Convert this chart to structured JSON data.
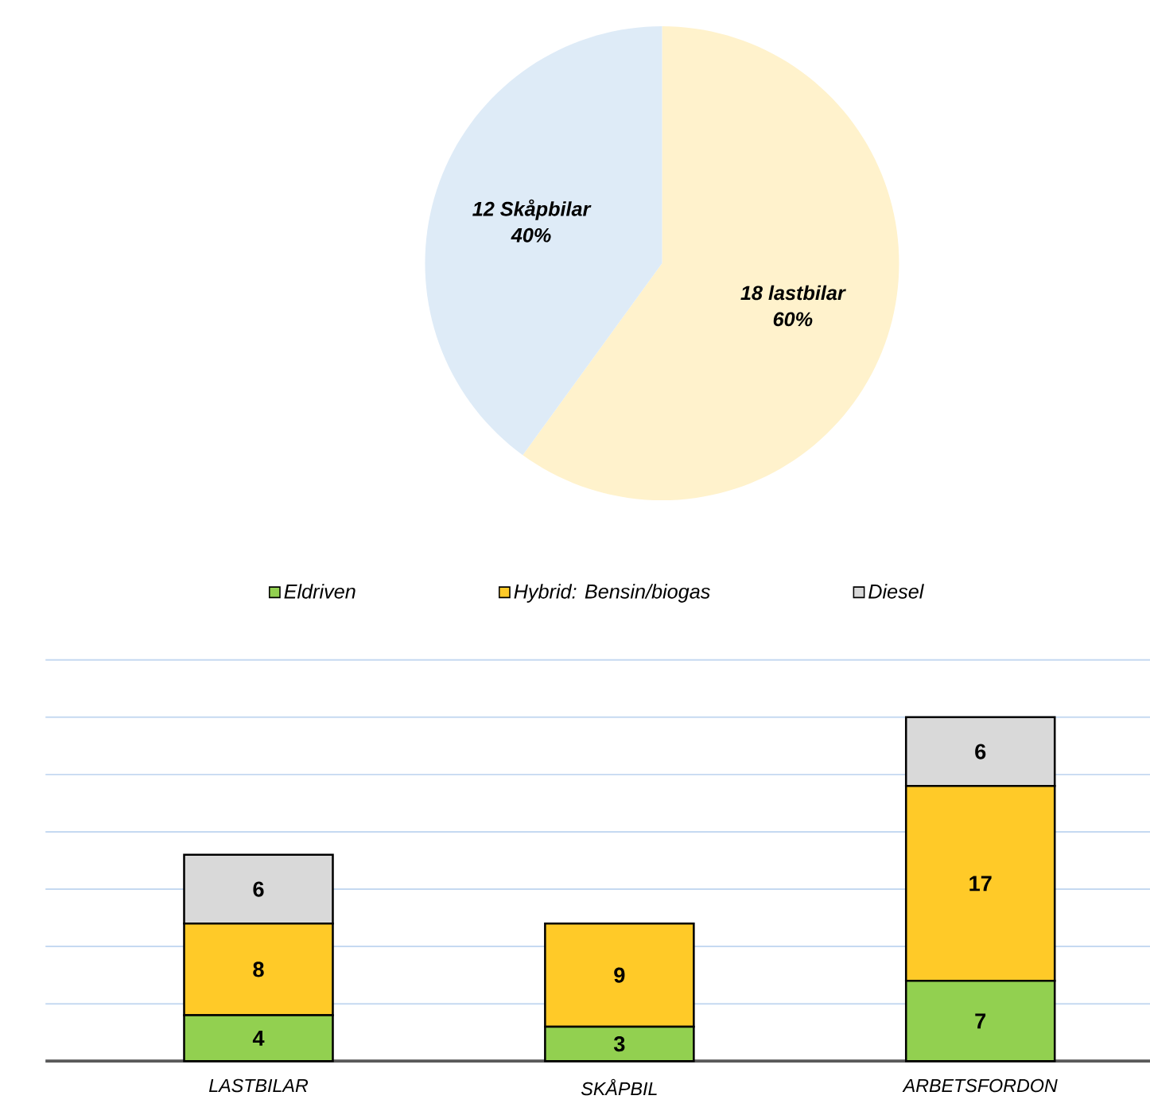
{
  "chart_data": [
    {
      "type": "pie",
      "categories": [
        "18 lastbilar",
        "12 Skåpbilar"
      ],
      "values": [
        60,
        40
      ],
      "colors": [
        "#fff2cc",
        "#deebf7"
      ],
      "value_labels": [
        "60%",
        "40%"
      ]
    },
    {
      "type": "bar",
      "stacked": true,
      "categories": [
        "LASTBILAR",
        "SKÅPBIL",
        "ARBETSFORDON"
      ],
      "series": [
        {
          "name": "Eldriven",
          "color": "#92d050",
          "values": [
            4,
            3,
            7
          ]
        },
        {
          "name": "Hybrid: Bensin/biogas",
          "color": "#ffca28",
          "values": [
            8,
            9,
            17
          ]
        },
        {
          "name": "Diesel",
          "color": "#d9d9d9",
          "values": [
            6,
            null,
            6
          ]
        }
      ],
      "ylim": [
        0,
        35
      ],
      "yticks": [
        {
          "value": 0,
          "label": null
        },
        {
          "value": 5,
          "label": null
        },
        {
          "value": 10,
          "label": null
        },
        {
          "value": 15,
          "label": null
        },
        {
          "value": 20,
          "label": null
        },
        {
          "value": 25,
          "label": null
        },
        {
          "value": 30,
          "label": null
        },
        {
          "value": 35,
          "label": null
        }
      ],
      "tick_labels": "x",
      "grid": "y",
      "legend": "top",
      "data_labels": true
    }
  ]
}
